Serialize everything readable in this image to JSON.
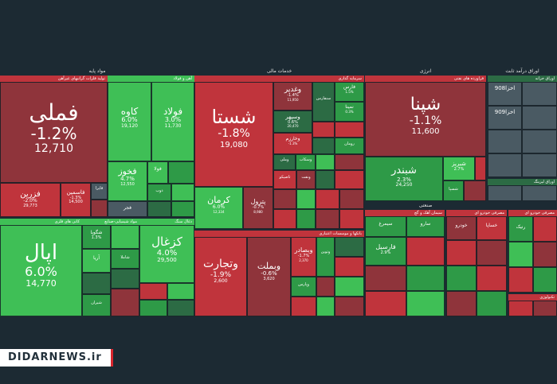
{
  "colors": {
    "background": "#1c2a33",
    "dark_red": "#8f343b",
    "red": "#c0343c",
    "bright_red": "#e0424a",
    "light_green": "#3fbf56",
    "green": "#2e9a47",
    "dark_green": "#2c6b44",
    "neutral": "#4a5a63"
  },
  "brand": {
    "text": "DIDARNEWS.ir"
  },
  "chart_data": {
    "type": "heatmap",
    "sectors": [
      {
        "title": "مواد پایه"
      },
      {
        "title": "خدمات مالی"
      },
      {
        "title": "انرژی"
      },
      {
        "title": "اوراق درآمد ثابت"
      },
      {
        "title": "صنعتی"
      }
    ],
    "groups": [
      {
        "title": "تولید فلزات گرانبهای غیرآهن"
      },
      {
        "title": "آهن و فولاد"
      },
      {
        "title": "کانی های فلزی"
      },
      {
        "title": "مواد شیمیایی-صنایع"
      },
      {
        "title": "ذغال سنگ"
      },
      {
        "title": "سرمایه گذاری"
      },
      {
        "title": "بانکها و موسسات اعتباری"
      },
      {
        "title": "فراورده های نفتی"
      },
      {
        "title": "اوراق خزانه"
      },
      {
        "title": "اوراق لیزینگ"
      },
      {
        "title": "سیمان آهک و گچ"
      },
      {
        "title": "مصرفی خودرو ای"
      },
      {
        "title": "مصرفی خودرو ای"
      },
      {
        "title": "تکنولوژی"
      }
    ],
    "tiles": [
      {
        "name": "فملی",
        "change": "-1.2%",
        "price": "12,710"
      },
      {
        "name": "فزرین",
        "change": "-2.0%",
        "price": "29,773"
      },
      {
        "name": "فاسمین",
        "change": "-1.3%",
        "price": "14,500"
      },
      {
        "name": "فایرا",
        "change": "",
        "price": ""
      },
      {
        "name": "کاوه",
        "change": "6.0%",
        "price": "19,120"
      },
      {
        "name": "فولاد",
        "change": "3.0%",
        "price": "11,730"
      },
      {
        "name": "فخوز",
        "change": "4.7%",
        "price": "12,550"
      },
      {
        "name": "فولا",
        "change": "",
        "price": ""
      },
      {
        "name": "ذوب",
        "change": "",
        "price": ""
      },
      {
        "name": "فجر",
        "change": "",
        "price": ""
      },
      {
        "name": "اپال",
        "change": "6.0%",
        "price": "14,770"
      },
      {
        "name": "شگویا",
        "change": "1.3%",
        "price": ""
      },
      {
        "name": "شاملا",
        "change": "",
        "price": ""
      },
      {
        "name": "آریا",
        "change": "",
        "price": ""
      },
      {
        "name": "شیران",
        "change": "",
        "price": ""
      },
      {
        "name": "کزغال",
        "change": "4.0%",
        "price": "29,500"
      },
      {
        "name": "شستا",
        "change": "-1.8%",
        "price": "19,080"
      },
      {
        "name": "وغدیر",
        "change": "-1.4%",
        "price": "11,950"
      },
      {
        "name": "وسپهر",
        "change": "0.6%",
        "price": "20,470"
      },
      {
        "name": "وخارزم",
        "change": "-1.3%",
        "price": ""
      },
      {
        "name": "فارس",
        "change": "1.5%",
        "price": ""
      },
      {
        "name": "سنفارس",
        "change": "",
        "price": ""
      },
      {
        "name": "نمینا",
        "change": "0.3%",
        "price": ""
      },
      {
        "name": "رومان",
        "change": "",
        "price": ""
      },
      {
        "name": "وسکاب",
        "change": "",
        "price": ""
      },
      {
        "name": "وملی",
        "change": "",
        "price": ""
      },
      {
        "name": "کرمان",
        "change": "6.0%",
        "price": "12,334"
      },
      {
        "name": "پترول",
        "change": "-0.7%",
        "price": "8,980"
      },
      {
        "name": "تاصیکو",
        "change": "",
        "price": ""
      },
      {
        "name": "ونفت",
        "change": "",
        "price": ""
      },
      {
        "name": "وتجارت",
        "change": "-1.9%",
        "price": "2,600"
      },
      {
        "name": "وبملت",
        "change": "-0.6%",
        "price": "3,620"
      },
      {
        "name": "وبصادر",
        "change": "-1.7%",
        "price": "2,370"
      },
      {
        "name": "وتوین",
        "change": "",
        "price": ""
      },
      {
        "name": "وپارس",
        "change": "",
        "price": ""
      },
      {
        "name": "شپنا",
        "change": "-1.1%",
        "price": "11,600"
      },
      {
        "name": "شبندر",
        "change": "2.3%",
        "price": "24,250"
      },
      {
        "name": "شبریز",
        "change": "2.7%",
        "price": ""
      },
      {
        "name": "شسپا",
        "change": "",
        "price": ""
      },
      {
        "name": "اخزا908",
        "change": "",
        "price": ""
      },
      {
        "name": "اخزا909",
        "change": "",
        "price": ""
      },
      {
        "name": "سیمرغ",
        "change": "",
        "price": ""
      },
      {
        "name": "سارو",
        "change": "",
        "price": ""
      },
      {
        "name": "فارسیل",
        "change": "2.9%",
        "price": ""
      },
      {
        "name": "خودرو",
        "change": "",
        "price": ""
      },
      {
        "name": "خساپا",
        "change": "",
        "price": ""
      },
      {
        "name": "رنیک",
        "change": "",
        "price": ""
      }
    ]
  }
}
